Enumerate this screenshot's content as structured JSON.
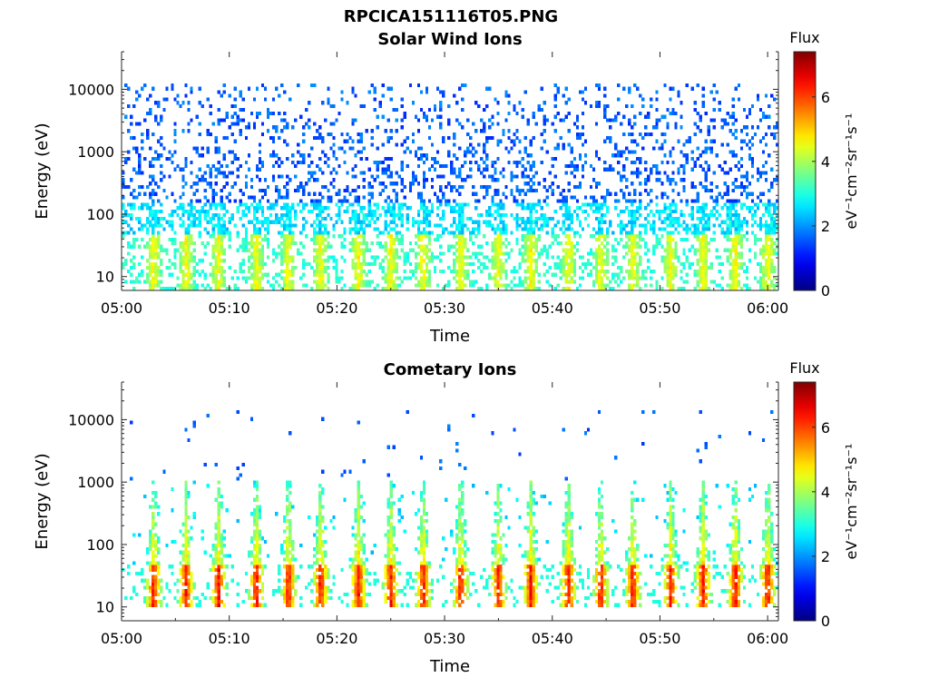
{
  "figure_title": "RPCICA151116T05.PNG",
  "chart_data": [
    {
      "type": "heatmap",
      "title": "Solar Wind Ions",
      "xlabel": "Time",
      "ylabel": "Energy (eV)",
      "x_ticks": [
        "05:00",
        "05:10",
        "05:20",
        "05:30",
        "05:40",
        "05:50",
        "06:00"
      ],
      "x_range": [
        "05:00",
        "06:01"
      ],
      "y_ticks": [
        "10",
        "100",
        "1000",
        "10000"
      ],
      "y_tick_values": [
        10,
        100,
        1000,
        10000
      ],
      "ylim": [
        6,
        40000
      ],
      "y_scale": "log",
      "colorbar": {
        "label": "Flux",
        "unit": "eV⁻¹cm⁻²sr⁻¹s⁻¹",
        "ticks": [
          "0",
          "2",
          "4",
          "6"
        ],
        "range": [
          0,
          7.4
        ],
        "colormap": "jet"
      },
      "pulse_times_min": [
        3,
        6,
        9,
        12.5,
        15.5,
        18.5,
        22,
        25,
        28,
        31.5,
        35,
        38,
        41.5,
        44.5,
        47.5,
        51,
        54,
        57,
        60
      ],
      "features": [
        {
          "energy_range": [
            1,
            45
          ],
          "peak_flux": 4.3
        },
        {
          "energy_range": [
            45,
            150
          ],
          "peak_flux": 3.0
        },
        {
          "energy_range": [
            150,
            12000
          ],
          "peak_flux": 1.6
        }
      ]
    },
    {
      "type": "heatmap",
      "title": "Cometary Ions",
      "xlabel": "Time",
      "ylabel": "Energy (eV)",
      "x_ticks": [
        "05:00",
        "05:10",
        "05:20",
        "05:30",
        "05:40",
        "05:50",
        "06:00"
      ],
      "x_range": [
        "05:00",
        "06:01"
      ],
      "y_ticks": [
        "10",
        "100",
        "1000",
        "10000"
      ],
      "y_tick_values": [
        10,
        100,
        1000,
        10000
      ],
      "ylim": [
        6,
        40000
      ],
      "y_scale": "log",
      "colorbar": {
        "label": "Flux",
        "unit": "eV⁻¹cm⁻²sr⁻¹s⁻¹",
        "ticks": [
          "0",
          "2",
          "4",
          "6"
        ],
        "range": [
          0,
          7.4
        ],
        "colormap": "jet"
      },
      "pulse_times_min": [
        3,
        6,
        9,
        12.5,
        15.5,
        18.5,
        22,
        25,
        28,
        31.5,
        35,
        38,
        41.5,
        44.5,
        47.5,
        51,
        54,
        57,
        60
      ],
      "features": [
        {
          "energy_range": [
            10,
            45
          ],
          "peak_flux": 6.8
        },
        {
          "energy_range": [
            45,
            1000
          ],
          "peak_flux": 4.5
        },
        {
          "energy_range": [
            1000,
            15000
          ],
          "peak_flux": 1.5
        }
      ]
    }
  ]
}
